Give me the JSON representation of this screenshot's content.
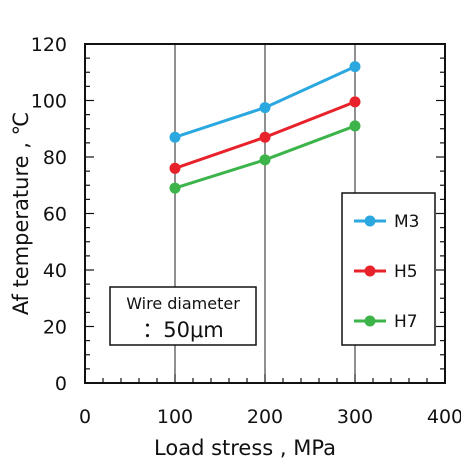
{
  "chart_data": {
    "type": "line",
    "title": "",
    "xlabel": "Load stress , MPa",
    "ylabel": "Af temperature , ℃",
    "xlim": [
      0,
      400
    ],
    "ylim": [
      0,
      120
    ],
    "xticks": [
      0,
      100,
      200,
      300,
      400
    ],
    "yticks": [
      0,
      20,
      40,
      60,
      80,
      100,
      120
    ],
    "x_minor_step": 20,
    "y_minor_step": 5,
    "grid": "vertical lines at major x ticks",
    "legend_position": "right, lower middle",
    "series": [
      {
        "name": "M3",
        "color": "#2ba8e0",
        "x": [
          100,
          200,
          300
        ],
        "y": [
          87,
          97.5,
          112
        ]
      },
      {
        "name": "H5",
        "color": "#e8222a",
        "x": [
          100,
          200,
          300
        ],
        "y": [
          76,
          87,
          99.5
        ]
      },
      {
        "name": "H7",
        "color": "#3cb44a",
        "x": [
          100,
          200,
          300
        ],
        "y": [
          69,
          79,
          91
        ]
      }
    ],
    "annotation": {
      "line1": "Wire diameter",
      "line2": "：50μm"
    }
  }
}
